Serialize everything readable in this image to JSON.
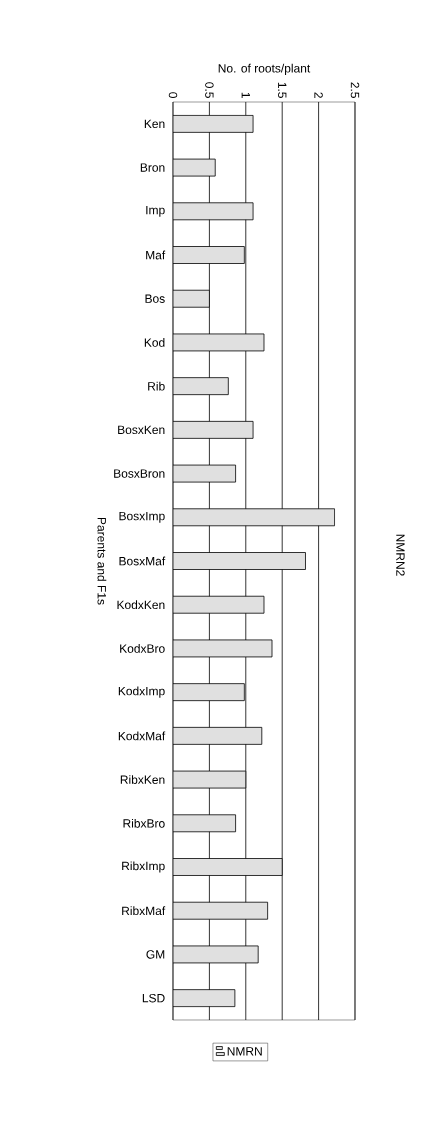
{
  "chart_data": {
    "type": "bar",
    "orientation": "horizontal",
    "title": "NMRN2",
    "xlabel": "No. of roots/plant",
    "ylabel": "Parents and F1s",
    "categories": [
      "Ken",
      "Bron",
      "Imp",
      "Maf",
      "Bos",
      "Kod",
      "Rib",
      "BosxKen",
      "BosxBron",
      "BosxImp",
      "BosxMaf",
      "KodxKen",
      "KodxBro",
      "KodxImp",
      "KodxMaf",
      "RibxKen",
      "RibxBro",
      "RibxImp",
      "RibxMaf",
      "GM",
      "LSD"
    ],
    "series": [
      {
        "name": "NMRN",
        "color": "#e0e0e0",
        "values": [
          1.1,
          0.58,
          1.1,
          0.98,
          0.5,
          1.25,
          0.76,
          1.1,
          0.86,
          2.22,
          1.82,
          1.25,
          1.36,
          0.98,
          1.22,
          1.0,
          0.86,
          1.5,
          1.3,
          1.17,
          0.85
        ]
      }
    ],
    "xlim": [
      0,
      2.5
    ],
    "xticks": [
      0,
      0.5,
      1,
      1.5,
      2,
      2.5
    ],
    "grid": "x",
    "legend": "bottom"
  }
}
